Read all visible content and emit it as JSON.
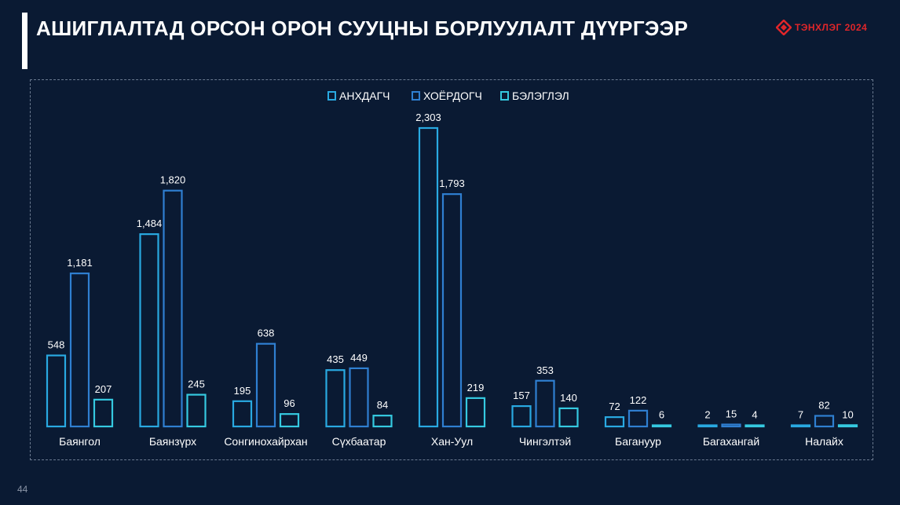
{
  "slide": {
    "title": "АШИГЛАЛТАД ОРСОН ОРОН СУУЦНЫ БОРЛУУЛАЛТ ДҮҮРГЭЭР",
    "logo_text": "ТЭНХЛЭГ 2024",
    "page_number": "44"
  },
  "colors": {
    "background": "#0a1a33",
    "series": [
      "#29a9e1",
      "#2f7fd1",
      "#35c9e0"
    ]
  },
  "chart_data": {
    "type": "bar",
    "title": "",
    "xlabel": "",
    "ylabel": "",
    "legend_position": "top-center",
    "grid": false,
    "categories": [
      "Баянгол",
      "Баянзүрх",
      "Сонгинохайрхан",
      "Сүхбаатар",
      "Хан-Уул",
      "Чингэлтэй",
      "Багануур",
      "Багахангай",
      "Налайх"
    ],
    "series": [
      {
        "name": "АНХДАГЧ",
        "values": [
          548,
          1484,
          195,
          435,
          2303,
          157,
          72,
          2,
          7
        ],
        "labels": [
          "548",
          "1,484",
          "195",
          "435",
          "2,303",
          "157",
          "72",
          "2",
          "7"
        ]
      },
      {
        "name": "ХОЁРДОГЧ",
        "values": [
          1181,
          1820,
          638,
          449,
          1793,
          353,
          122,
          15,
          82
        ],
        "labels": [
          "1,181",
          "1,820",
          "638",
          "449",
          "1,793",
          "353",
          "122",
          "15",
          "82"
        ]
      },
      {
        "name": "БЭЛЭГЛЭЛ",
        "values": [
          207,
          245,
          96,
          84,
          219,
          140,
          6,
          4,
          10
        ],
        "labels": [
          "207",
          "245",
          "96",
          "84",
          "219",
          "140",
          "6",
          "4",
          "10"
        ]
      }
    ]
  }
}
